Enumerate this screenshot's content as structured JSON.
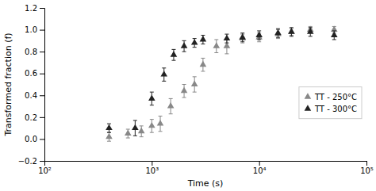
{
  "chart_data": {
    "type": "scatter",
    "xlabel": "Time (s)",
    "ylabel": "Transformed fraction (f)",
    "log": "x",
    "grid": false,
    "legend": "right",
    "xlim": [
      100,
      100000
    ],
    "xticks": [
      {
        "value": 100,
        "label": "10²"
      },
      {
        "value": 1000,
        "label": "10³"
      },
      {
        "value": 10000,
        "label": "10⁴"
      },
      {
        "value": 100000,
        "label": "10⁵"
      }
    ],
    "ylim": [
      -0.2,
      1.2
    ],
    "yticks": [
      {
        "value": -0.2,
        "label": "−0.2"
      },
      {
        "value": 0.0,
        "label": "0.0"
      },
      0.2,
      0.4,
      0.6,
      0.8,
      {
        "value": 1.0,
        "label": "1.0"
      },
      1.2
    ],
    "series": [
      {
        "name": "TT - 250°C",
        "color": "#888888",
        "marker": "triangle",
        "x": [
          400,
          600,
          800,
          1000,
          1200,
          1500,
          2000,
          2500,
          3000,
          4000,
          5000,
          7000,
          10000,
          15000,
          20000,
          30000,
          50000
        ],
        "values": [
          0.02,
          0.05,
          0.07,
          0.12,
          0.14,
          0.3,
          0.44,
          0.5,
          0.68,
          0.85,
          0.85,
          0.92,
          0.93,
          0.96,
          0.98,
          1.0,
          1.0
        ],
        "yerr": [
          0.04,
          0.04,
          0.05,
          0.06,
          0.07,
          0.07,
          0.06,
          0.07,
          0.06,
          0.06,
          0.07,
          0.04,
          0.04,
          0.04,
          0.03,
          0.03,
          0.03
        ]
      },
      {
        "name": "TT - 300°C",
        "color": "#222222",
        "marker": "triangle",
        "x": [
          400,
          700,
          1000,
          1300,
          1600,
          2000,
          2500,
          3000,
          5000,
          7000,
          10000,
          15000,
          20000,
          30000,
          50000
        ],
        "values": [
          0.1,
          0.1,
          0.37,
          0.59,
          0.77,
          0.85,
          0.88,
          0.91,
          0.92,
          0.93,
          0.95,
          0.97,
          0.98,
          0.98,
          0.95
        ],
        "yerr": [
          0.04,
          0.07,
          0.06,
          0.06,
          0.05,
          0.05,
          0.04,
          0.04,
          0.04,
          0.04,
          0.04,
          0.04,
          0.04,
          0.04,
          0.04
        ]
      }
    ]
  }
}
